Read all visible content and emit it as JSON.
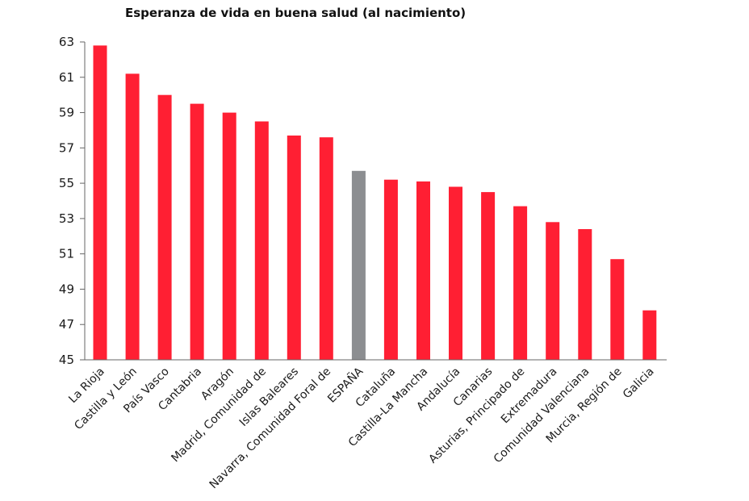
{
  "chart_data": {
    "type": "bar",
    "title": "Esperanza de vida en buena salud (al nacimiento)",
    "xlabel": "",
    "ylabel": "",
    "ylim": [
      45,
      63
    ],
    "yticks": [
      45,
      47,
      49,
      51,
      53,
      55,
      57,
      59,
      61,
      63
    ],
    "grid": false,
    "legend": "none",
    "categories": [
      "La Rioja",
      "Castilla y León",
      "País Vasco",
      "Cantabria",
      "Aragón",
      "Madrid, Comunidad de",
      "Islas Baleares",
      "Navarra, Comunidad Foral de",
      "ESPAÑA",
      "Cataluña",
      "Castilla-La Mancha",
      "Andalucía",
      "Canarias",
      "Asturias, Principado de",
      "Extremadura",
      "Comunidad Valenciana",
      "Murcia, Región de",
      "Galicia"
    ],
    "values": [
      62.8,
      61.2,
      60.0,
      59.5,
      59.0,
      58.5,
      57.7,
      57.6,
      55.7,
      55.2,
      55.1,
      54.8,
      54.5,
      53.7,
      52.8,
      52.4,
      50.7,
      47.8
    ],
    "highlight": "ESPAÑA",
    "colors": {
      "bar": "#ff1f33",
      "highlight": "#8c8e91",
      "axis": "#666666",
      "text": "#1a1a1a"
    }
  }
}
